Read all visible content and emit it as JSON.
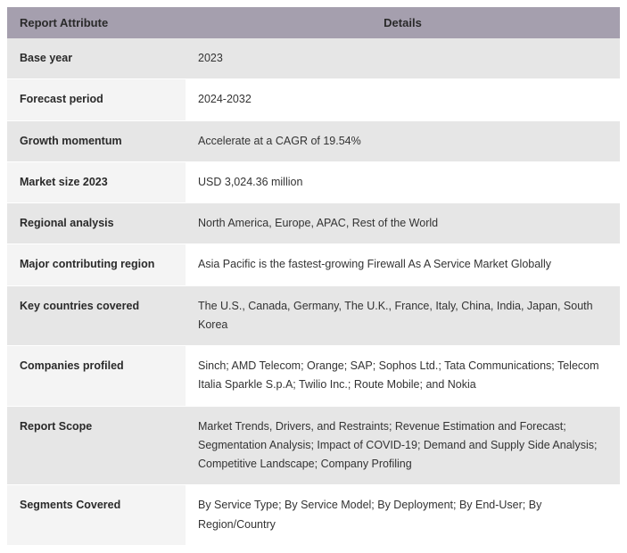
{
  "table": {
    "header_bg": "#a59fae",
    "odd_row_bg": "#e6e6e6",
    "even_row_bg": "#ffffff",
    "even_row_attr_bg": "#f4f4f4",
    "text_color": "#333333",
    "font_size": 12.5,
    "header_font_size": 13,
    "columns": [
      "Report Attribute",
      "Details"
    ],
    "rows": [
      {
        "attr": "Base year",
        "detail": "2023"
      },
      {
        "attr": "Forecast period",
        "detail": "2024-2032"
      },
      {
        "attr": "Growth momentum",
        "detail": "Accelerate at a CAGR of 19.54%"
      },
      {
        "attr": "Market size 2023",
        "detail": "USD 3,024.36 million"
      },
      {
        "attr": "Regional analysis",
        "detail": "North America, Europe, APAC, Rest of the World"
      },
      {
        "attr": "Major contributing region",
        "detail": "Asia Pacific is the fastest-growing Firewall As A Service Market Globally"
      },
      {
        "attr": "Key countries covered",
        "detail": "The U.S., Canada, Germany, The U.K., France, Italy, China, India, Japan, South Korea"
      },
      {
        "attr": "Companies profiled",
        "detail": "Sinch; AMD Telecom; Orange; SAP; Sophos Ltd.; Tata Communications; Telecom Italia Sparkle S.p.A; Twilio Inc.; Route Mobile; and Nokia"
      },
      {
        "attr": "Report Scope",
        "detail": "Market Trends, Drivers, and Restraints; Revenue Estimation and Forecast; Segmentation Analysis; Impact of COVID-19; Demand and Supply Side Analysis; Competitive Landscape; Company Profiling"
      },
      {
        "attr": "Segments Covered",
        "detail": "By Service Type; By Service Model; By Deployment; By End-User; By Region/Country"
      }
    ]
  }
}
